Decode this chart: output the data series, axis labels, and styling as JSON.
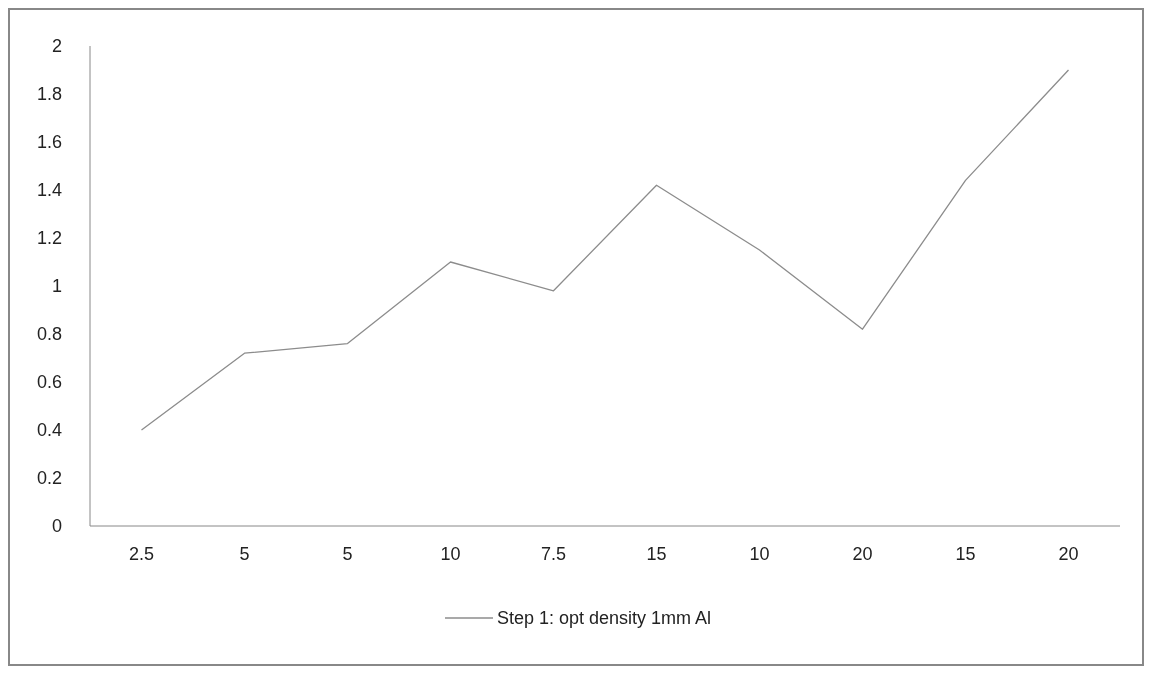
{
  "chart_data": {
    "type": "line",
    "categories": [
      "2.5",
      "5",
      "5",
      "10",
      "7.5",
      "15",
      "10",
      "20",
      "15",
      "20"
    ],
    "series": [
      {
        "name": "Step 1: opt density 1mm Al",
        "color": "#8c8c8c",
        "values": [
          0.4,
          0.72,
          0.76,
          1.1,
          0.98,
          1.42,
          1.15,
          0.82,
          1.44,
          1.9
        ]
      }
    ],
    "ylim": [
      0,
      2
    ],
    "yticks": [
      0,
      0.2,
      0.4,
      0.6,
      0.8,
      1,
      1.2,
      1.4,
      1.6,
      1.8,
      2
    ],
    "grid": false,
    "legend": "bottom",
    "marker": "none",
    "line_style": "solid"
  }
}
